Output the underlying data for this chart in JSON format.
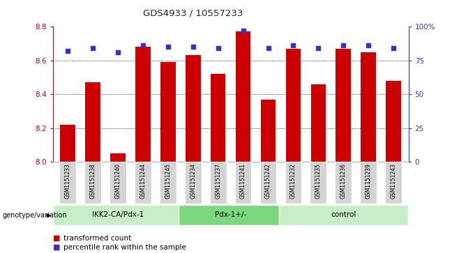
{
  "title": "GDS4933 / 10557233",
  "samples": [
    "GSM1151233",
    "GSM1151238",
    "GSM1151240",
    "GSM1151244",
    "GSM1151245",
    "GSM1151234",
    "GSM1151237",
    "GSM1151241",
    "GSM1151242",
    "GSM1151232",
    "GSM1151235",
    "GSM1151236",
    "GSM1151239",
    "GSM1151243"
  ],
  "bar_values": [
    8.22,
    8.47,
    8.05,
    8.68,
    8.59,
    8.63,
    8.52,
    8.77,
    8.37,
    8.67,
    8.46,
    8.67,
    8.65,
    8.48
  ],
  "percentile_values": [
    82,
    84,
    81,
    86,
    85,
    85,
    84,
    97,
    84,
    86,
    84,
    86,
    86,
    84
  ],
  "ylim": [
    8.0,
    8.8
  ],
  "y_ticks": [
    8.0,
    8.2,
    8.4,
    8.6,
    8.8
  ],
  "right_yticks": [
    0,
    25,
    50,
    75,
    100
  ],
  "bar_color": "#cc0000",
  "dot_color": "#3333cc",
  "groups": [
    {
      "label": "IKK2-CA/Pdx-1",
      "start": 0,
      "end": 5,
      "color": "#c8eec8"
    },
    {
      "label": "Pdx-1+/-",
      "start": 5,
      "end": 9,
      "color": "#7dd87d"
    },
    {
      "label": "control",
      "start": 9,
      "end": 14,
      "color": "#c8eec8"
    }
  ],
  "group_label_prefix": "genotype/variation",
  "legend_bar_label": "transformed count",
  "legend_dot_label": "percentile rank within the sample",
  "bar_color_legend": "#cc0000",
  "dot_color_legend": "#3333cc",
  "left_axis_color": "#cc0000",
  "right_axis_color": "#3333cc",
  "title_color": "#333333",
  "grid_color": "#555555",
  "bar_width": 0.6
}
